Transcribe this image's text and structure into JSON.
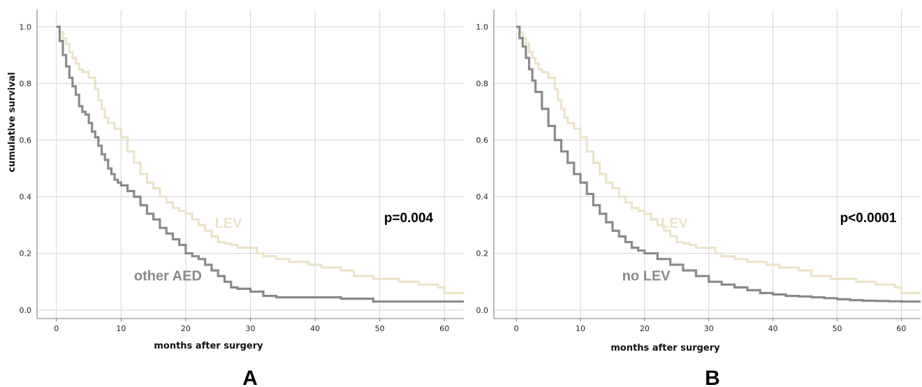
{
  "colors": {
    "lev": "#ebe3c9",
    "other": "#8a8a8a",
    "grid": "#d4d4d4",
    "axis": "#777777"
  },
  "chart_data": [
    {
      "type": "line",
      "panel_label": "A",
      "xlabel": "months after surgery",
      "ylabel": "cumulative survival",
      "xlim": [
        -3,
        63
      ],
      "ylim": [
        -0.03,
        1.06
      ],
      "xticks": [
        0,
        10,
        20,
        30,
        40,
        50,
        60
      ],
      "yticks": [
        "0.0",
        "0.2",
        "0.4",
        "0.6",
        "0.8",
        "1.0"
      ],
      "grid": true,
      "step": true,
      "annotation": "p=0.004",
      "series": [
        {
          "name": "LEV",
          "color": "#ebe3c9",
          "x": [
            0,
            0.5,
            1,
            1.5,
            2,
            2.5,
            3,
            3.5,
            4,
            5,
            6,
            6.5,
            7,
            7.5,
            8,
            9,
            10,
            11,
            12,
            13,
            14,
            15,
            16,
            17,
            18,
            19,
            20,
            21,
            22,
            23,
            24,
            25,
            26,
            27,
            28,
            30,
            31,
            32,
            34,
            36,
            39,
            41,
            44,
            46,
            49,
            53,
            56,
            59,
            60,
            63
          ],
          "y": [
            1.0,
            0.98,
            0.96,
            0.94,
            0.91,
            0.89,
            0.87,
            0.85,
            0.84,
            0.82,
            0.78,
            0.74,
            0.71,
            0.68,
            0.66,
            0.64,
            0.61,
            0.56,
            0.52,
            0.48,
            0.45,
            0.43,
            0.4,
            0.38,
            0.36,
            0.35,
            0.34,
            0.32,
            0.3,
            0.28,
            0.26,
            0.24,
            0.235,
            0.23,
            0.22,
            0.22,
            0.2,
            0.19,
            0.18,
            0.17,
            0.16,
            0.15,
            0.14,
            0.12,
            0.11,
            0.1,
            0.09,
            0.08,
            0.06,
            0.06
          ]
        },
        {
          "name": "other AED",
          "color": "#8a8a8a",
          "x": [
            0,
            0.5,
            1,
            1.5,
            2,
            2.5,
            3,
            3.5,
            4,
            4.5,
            5,
            5.5,
            6,
            6.5,
            7,
            7.5,
            8,
            8.5,
            9,
            9.5,
            10,
            11,
            12,
            13,
            14,
            15,
            16,
            17,
            18,
            19,
            20,
            21,
            22,
            23,
            24,
            25,
            26,
            27,
            28,
            30,
            32,
            34,
            36,
            40,
            44,
            49,
            55,
            63
          ],
          "y": [
            1.0,
            0.95,
            0.9,
            0.86,
            0.82,
            0.79,
            0.76,
            0.72,
            0.7,
            0.69,
            0.66,
            0.63,
            0.61,
            0.58,
            0.55,
            0.53,
            0.5,
            0.48,
            0.46,
            0.45,
            0.44,
            0.42,
            0.4,
            0.37,
            0.34,
            0.32,
            0.29,
            0.27,
            0.25,
            0.23,
            0.2,
            0.19,
            0.18,
            0.16,
            0.14,
            0.12,
            0.1,
            0.08,
            0.075,
            0.065,
            0.05,
            0.045,
            0.045,
            0.045,
            0.04,
            0.03,
            0.03,
            0.03
          ]
        }
      ],
      "series_labels": [
        {
          "text": "LEV",
          "x": 24.5,
          "y": 0.29,
          "color": "#ebe3c9"
        },
        {
          "text": "other AED",
          "x": 12,
          "y": 0.105,
          "color": "#8a8a8a"
        }
      ]
    },
    {
      "type": "line",
      "panel_label": "B",
      "xlabel": "months after surgery",
      "ylabel": "",
      "xlim": [
        -3.5,
        63
      ],
      "ylim": [
        -0.03,
        1.06
      ],
      "xticks": [
        0,
        10,
        20,
        30,
        40,
        50,
        60
      ],
      "yticks": [
        "0.0",
        "0.2",
        "0.4",
        "0.6",
        "0.8",
        "1.0"
      ],
      "grid": true,
      "step": true,
      "annotation": "p<0.0001",
      "series": [
        {
          "name": "LEV",
          "color": "#ebe3c9",
          "x": [
            0,
            0.5,
            1,
            1.5,
            2,
            2.5,
            3,
            3.5,
            4,
            5,
            6,
            6.5,
            7,
            7.5,
            8,
            9,
            10,
            11,
            12,
            13,
            14,
            15,
            16,
            17,
            18,
            19,
            20,
            21,
            22,
            23,
            24,
            25,
            26,
            27,
            28,
            30,
            31,
            32,
            34,
            36,
            39,
            41,
            44,
            46,
            49,
            53,
            56,
            59,
            60,
            63
          ],
          "y": [
            1.0,
            0.98,
            0.96,
            0.94,
            0.91,
            0.89,
            0.87,
            0.85,
            0.84,
            0.82,
            0.78,
            0.74,
            0.71,
            0.68,
            0.66,
            0.64,
            0.61,
            0.56,
            0.52,
            0.48,
            0.45,
            0.43,
            0.4,
            0.38,
            0.36,
            0.35,
            0.34,
            0.32,
            0.3,
            0.28,
            0.26,
            0.24,
            0.235,
            0.23,
            0.22,
            0.22,
            0.2,
            0.19,
            0.18,
            0.17,
            0.16,
            0.15,
            0.14,
            0.12,
            0.11,
            0.1,
            0.09,
            0.08,
            0.06,
            0.06
          ]
        },
        {
          "name": "no LEV",
          "color": "#8a8a8a",
          "x": [
            0,
            0.5,
            1,
            1.5,
            2,
            2.5,
            3,
            4,
            5,
            6,
            7,
            8,
            9,
            10,
            11,
            12,
            13,
            14,
            15,
            16,
            17,
            18,
            19,
            20,
            22,
            24,
            26,
            28,
            30,
            32,
            34,
            36,
            38,
            40,
            42,
            44,
            46,
            48,
            50,
            52,
            54,
            56,
            58,
            60,
            63
          ],
          "y": [
            1.0,
            0.96,
            0.93,
            0.89,
            0.85,
            0.81,
            0.77,
            0.71,
            0.65,
            0.6,
            0.56,
            0.52,
            0.48,
            0.45,
            0.41,
            0.37,
            0.34,
            0.31,
            0.28,
            0.26,
            0.24,
            0.22,
            0.21,
            0.2,
            0.18,
            0.16,
            0.14,
            0.12,
            0.1,
            0.09,
            0.08,
            0.07,
            0.06,
            0.055,
            0.05,
            0.048,
            0.045,
            0.042,
            0.038,
            0.035,
            0.033,
            0.032,
            0.031,
            0.03,
            0.03
          ]
        }
      ],
      "series_labels": [
        {
          "text": "LEV",
          "x": 22.5,
          "y": 0.29,
          "color": "#ebe3c9"
        },
        {
          "text": "no LEV",
          "x": 16.5,
          "y": 0.105,
          "color": "#8a8a8a"
        }
      ]
    }
  ]
}
